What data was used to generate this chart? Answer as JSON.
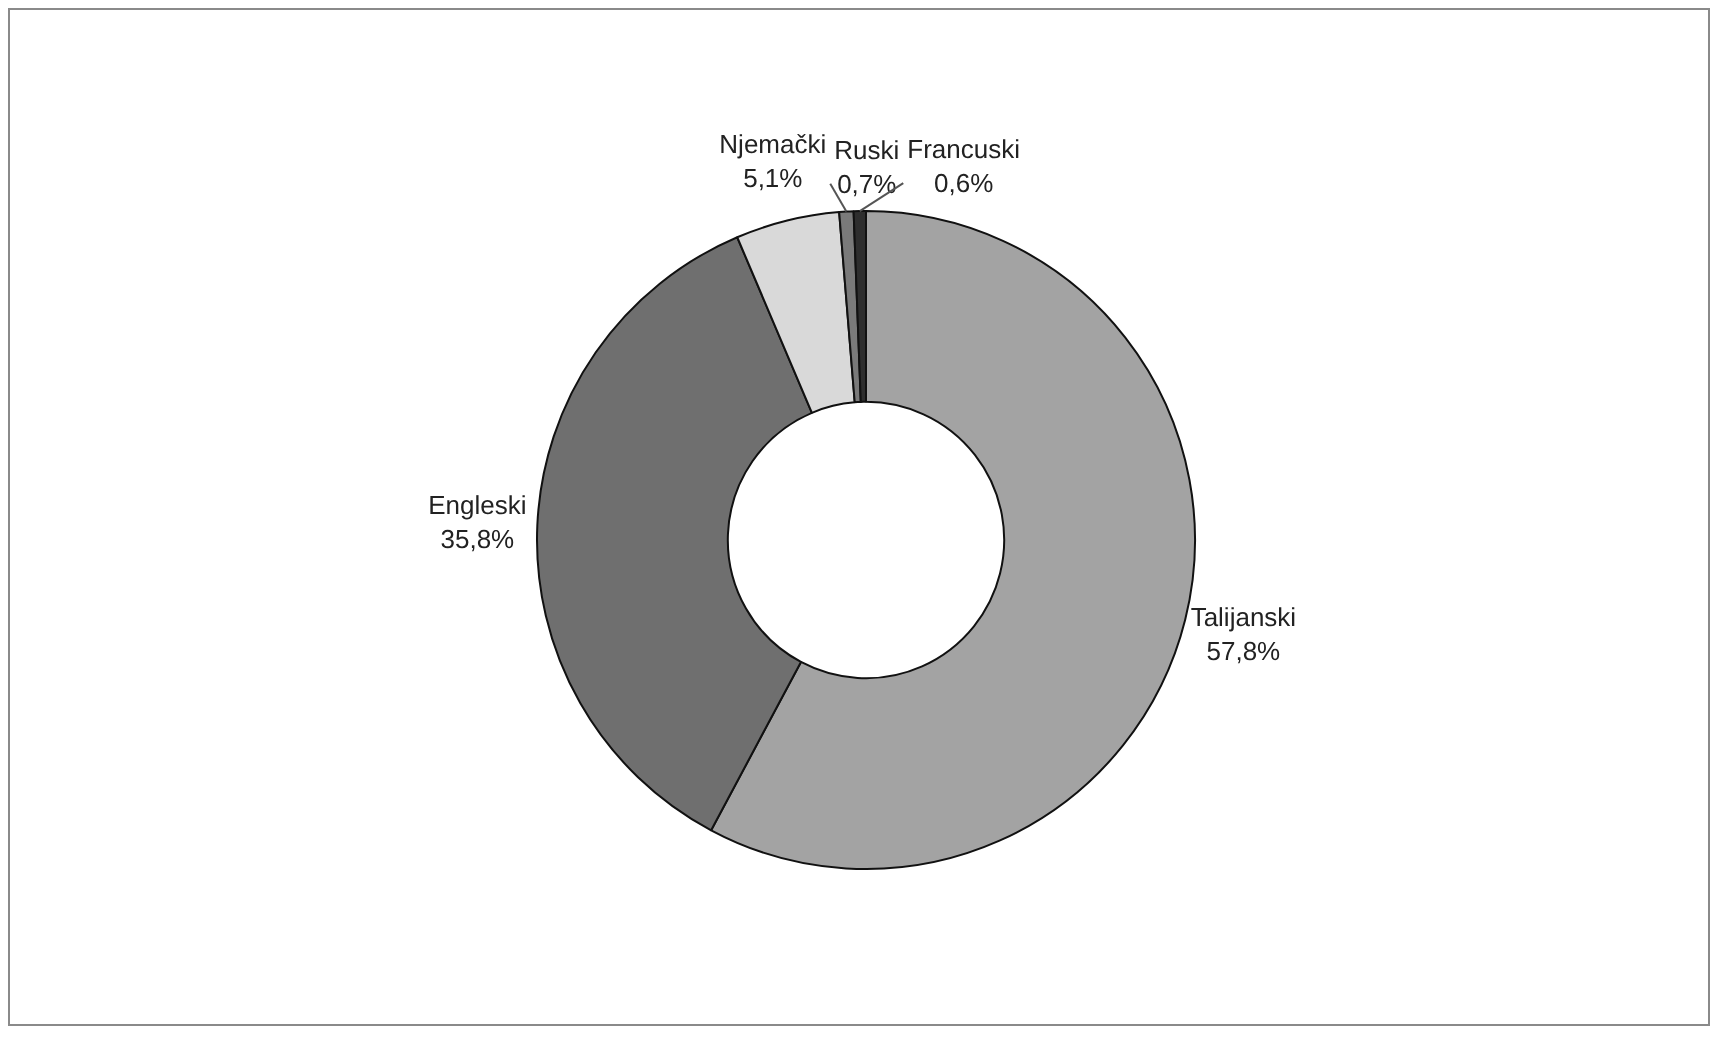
{
  "chart_data": {
    "type": "donut",
    "categories": [
      "Talijanski",
      "Engleski",
      "Njemački",
      "Ruski",
      "Francuski"
    ],
    "values": [
      57.8,
      35.8,
      5.1,
      0.7,
      0.6
    ],
    "value_labels": [
      "57,8%",
      "35,8%",
      "5,1%",
      "0,7%",
      "0,6%"
    ],
    "colors": [
      "#a3a3a3",
      "#6f6f6f",
      "#d9d9d9",
      "#7a7a7a",
      "#2e2e2e"
    ],
    "legend": false
  }
}
